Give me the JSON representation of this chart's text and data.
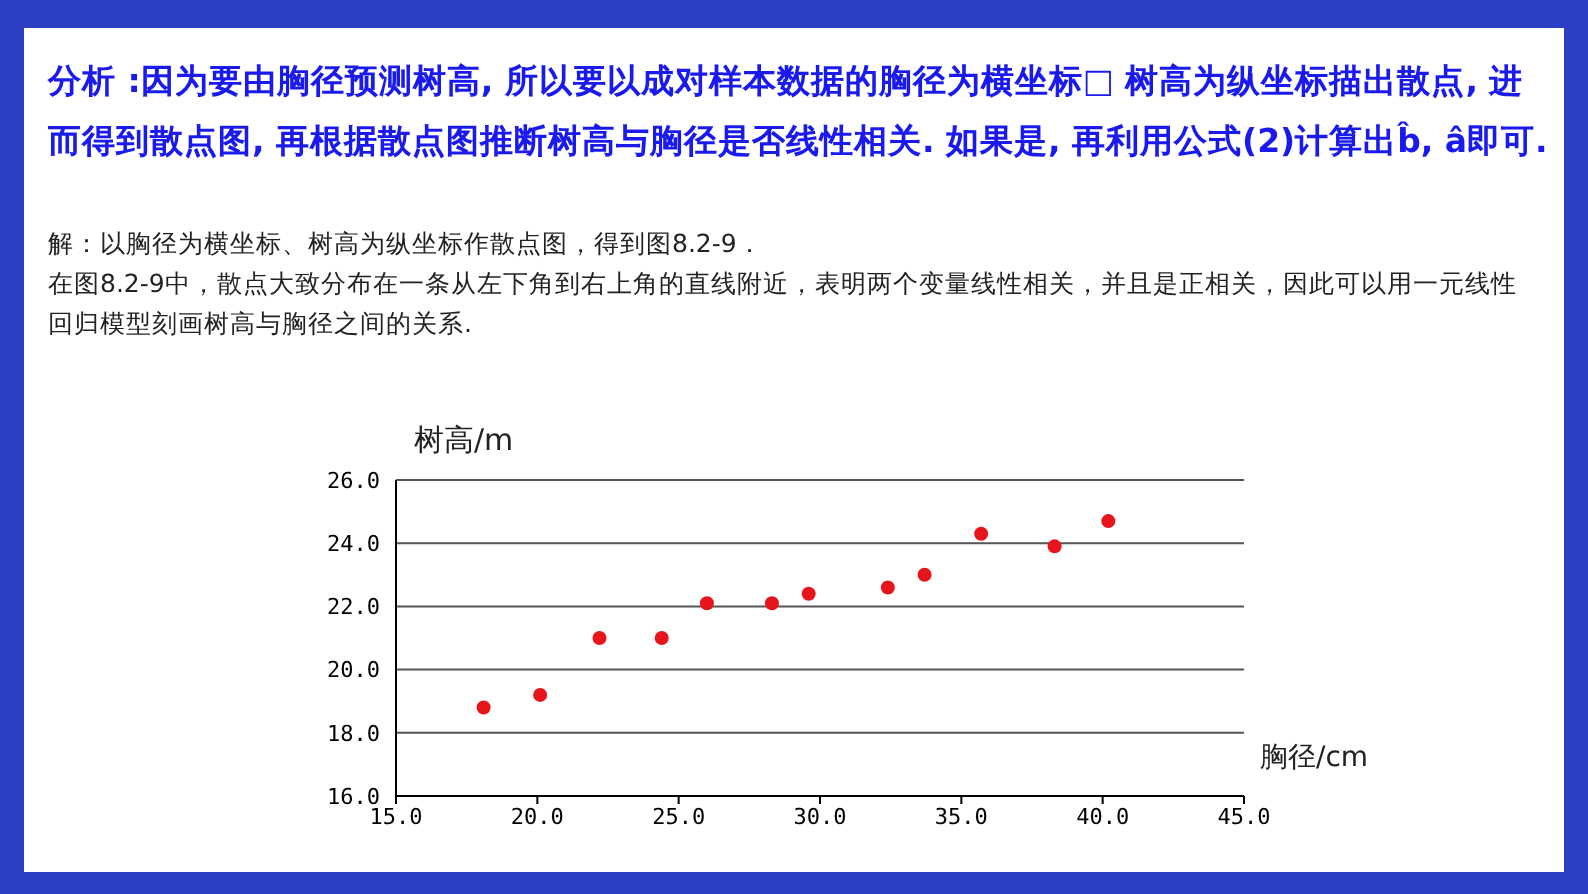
{
  "chart_data": {
    "type": "scatter",
    "title": "分析 :因为要由胸径预测树高, 所以要以成对样本数据的胸径为横坐标□ 树高为纵坐标描出散点, 进而得到散点图, 再根据散点图推断树高与胸径是否线性相关. 如果是, 再利用公式(2)计算出b̂, â即可.",
    "annotations": [
      "解：以胸径为横坐标、树高为纵坐标作散点图，得到图8.2-9．",
      "在图8.2-9中，散点大致分布在一条从左下角到右上角的直线附近，表明两个变量线性相关，并且是正相关，因此可以用一元线性回归模型刻画树高与胸径之间的关系."
    ],
    "xlabel": "胸径/cm",
    "ylabel": "树高/m",
    "x": [
      18.1,
      20.1,
      22.2,
      24.4,
      26.0,
      28.3,
      29.6,
      32.4,
      33.7,
      35.7,
      38.3,
      40.2
    ],
    "series": [
      {
        "color": "#e8141c",
        "values": [
          18.8,
          19.2,
          21.0,
          21.0,
          22.1,
          22.1,
          22.4,
          22.6,
          23.0,
          24.3,
          23.9,
          24.7
        ]
      }
    ],
    "xlim": [
      15,
      45
    ],
    "xticks": [
      {
        "value": 15,
        "label": "15.0"
      },
      {
        "value": 20,
        "label": "20.0"
      },
      {
        "value": 25,
        "label": "25.0"
      },
      {
        "value": 30,
        "label": "30.0"
      },
      {
        "value": 35,
        "label": "35.0"
      },
      {
        "value": 40,
        "label": "40.0"
      },
      {
        "value": 45,
        "label": "45.0"
      }
    ],
    "ylim": [
      16,
      26
    ],
    "yticks": [
      {
        "value": 16,
        "label": "16.0"
      },
      {
        "value": 18,
        "label": "18.0"
      },
      {
        "value": 20,
        "label": "20.0"
      },
      {
        "value": 22,
        "label": "22.0"
      },
      {
        "value": 24,
        "label": "24.0"
      },
      {
        "value": 26,
        "label": "26.0"
      }
    ],
    "grid": "y",
    "marker": "circle",
    "legend": false
  }
}
